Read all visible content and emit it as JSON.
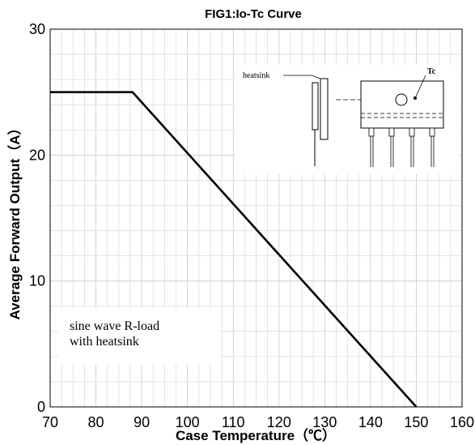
{
  "chart_data": {
    "type": "line",
    "title": "FIG1:Io-Tc Curve",
    "xlabel": "Case Temperature（℃）",
    "ylabel": "Average Forward Output（A）",
    "xlim": [
      70,
      160
    ],
    "ylim": [
      0,
      30
    ],
    "x_ticks": [
      70,
      80,
      90,
      100,
      110,
      120,
      130,
      140,
      150,
      160
    ],
    "y_ticks": [
      0,
      10,
      20,
      30
    ],
    "grid": true,
    "series": [
      {
        "x": [
          70,
          88,
          150
        ],
        "y": [
          25,
          25,
          0
        ]
      }
    ],
    "annotations": {
      "condition_line1": "sine wave R-load",
      "condition_line2": "with heatsink",
      "heatsink_label": "heatsink",
      "tc_label": "Tc"
    }
  }
}
